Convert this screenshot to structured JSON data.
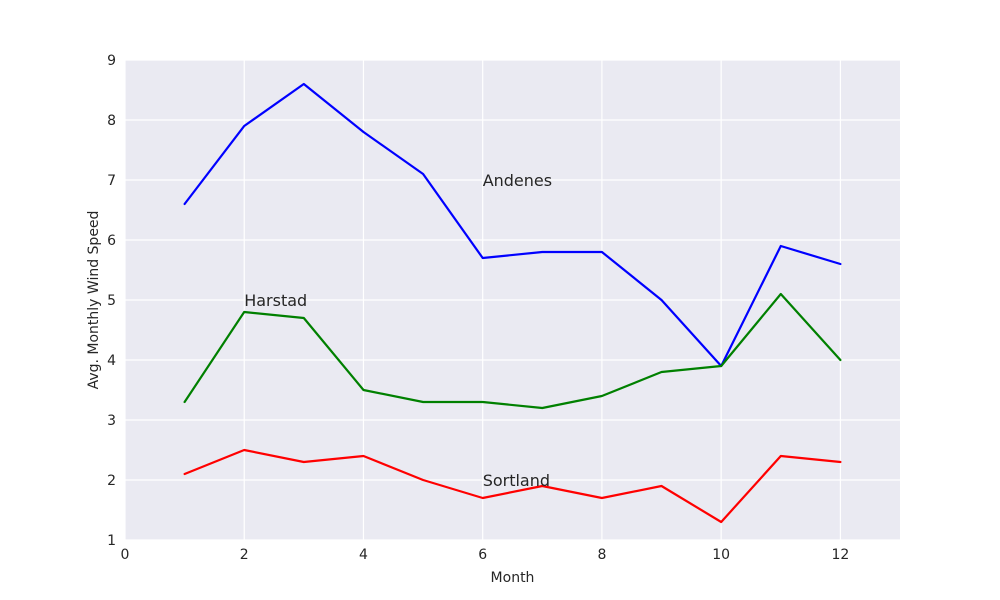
{
  "chart_data": {
    "type": "line",
    "title": "",
    "xlabel": "Month",
    "ylabel": "Avg. Monthly Wind Speed",
    "xlim": [
      0,
      13
    ],
    "ylim": [
      1,
      9
    ],
    "xticks": [
      0,
      2,
      4,
      6,
      8,
      10,
      12
    ],
    "yticks": [
      1,
      2,
      3,
      4,
      5,
      6,
      7,
      8,
      9
    ],
    "grid": true,
    "background_color": "#EAEAF2",
    "x": [
      1,
      2,
      3,
      4,
      5,
      6,
      7,
      8,
      9,
      10,
      11,
      12
    ],
    "series": [
      {
        "values": [
          6.6,
          7.9,
          8.6,
          7.8,
          7.1,
          5.7,
          5.8,
          5.8,
          5.0,
          3.9,
          5.9,
          5.6
        ],
        "color": "#0000FF"
      },
      {
        "values": [
          3.3,
          4.8,
          4.7,
          3.5,
          3.3,
          3.3,
          3.2,
          3.4,
          3.8,
          3.9,
          5.1,
          4.0
        ],
        "color": "#008000"
      },
      {
        "values": [
          2.1,
          2.5,
          2.3,
          2.4,
          2.0,
          1.7,
          1.9,
          1.7,
          1.9,
          1.3,
          2.4,
          2.3
        ],
        "color": "#FF0000"
      }
    ],
    "annotations": [
      {
        "text": "Andenes",
        "x": 6,
        "y": 7.0
      },
      {
        "text": "Harstad",
        "x": 2,
        "y": 5.0
      },
      {
        "text": "Sortland",
        "x": 6,
        "y": 2.0
      }
    ]
  }
}
